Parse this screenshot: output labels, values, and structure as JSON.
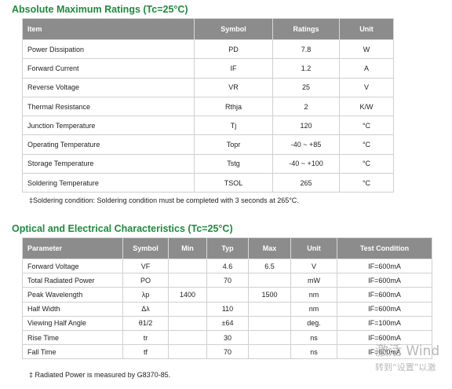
{
  "section1": {
    "title": "Absolute Maximum Ratings (Tc=25°C)",
    "headers": [
      "Item",
      "Symbol",
      "Ratings",
      "Unit"
    ],
    "rows": [
      [
        "Power Dissipation",
        "PD",
        "7.8",
        "W"
      ],
      [
        "Forward Current",
        "IF",
        "1.2",
        "A"
      ],
      [
        "Reverse Voltage",
        "VR",
        "25",
        "V"
      ],
      [
        "Thermal Resistance",
        "Rthja",
        "2",
        "K/W"
      ],
      [
        "Junction Temperature",
        "Tj",
        "120",
        "°C"
      ],
      [
        "Operating Temperature",
        "Topr",
        "-40 ~ +85",
        "°C"
      ],
      [
        "Storage Temperature",
        "Tstg",
        "-40 ~ +100",
        "°C"
      ],
      [
        "Soldering Temperature",
        "TSOL",
        "265",
        "°C"
      ]
    ],
    "note": "‡Soldering condition: Soldering condition must be completed with 3 seconds at 265°C."
  },
  "section2": {
    "title": "Optical and Electrical Characteristics (Tc=25°C)",
    "headers": [
      "Parameter",
      "Symbol",
      "Min",
      "Typ",
      "Max",
      "Unit",
      "Test Condition"
    ],
    "rows": [
      [
        "Forward Voltage",
        "VF",
        "",
        "4.6",
        "6.5",
        "V",
        "IF=600mA"
      ],
      [
        "Total Radiated Power",
        "PO",
        "",
        "70",
        "",
        "mW",
        "IF=600mA"
      ],
      [
        "Peak Wavelength",
        "λp",
        "1400",
        "",
        "1500",
        "nm",
        "IF=600mA"
      ],
      [
        "Half Width",
        "Δλ",
        "",
        "110",
        "",
        "nm",
        "IF=600mA"
      ],
      [
        "Viewing Half Angle",
        "θ1/2",
        "",
        "±64",
        "",
        "deg.",
        "IF=100mA"
      ],
      [
        "Rise Time",
        "tr",
        "",
        "30",
        "",
        "ns",
        "IF=600mA"
      ],
      [
        "Fall Time",
        "tf",
        "",
        "70",
        "",
        "ns",
        "IF=600mA"
      ]
    ],
    "note": "‡ Radiated Power is measured by G8370-85."
  },
  "watermark": {
    "line1": "激活 Wind",
    "line2": "转到“设置”以激"
  }
}
